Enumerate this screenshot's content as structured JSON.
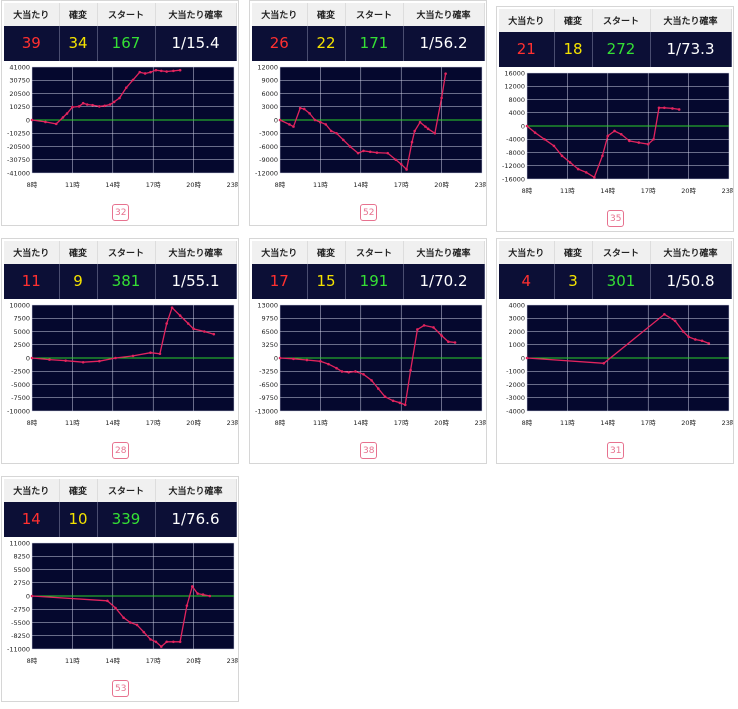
{
  "headers": {
    "hits": "大当たり",
    "kakuhen": "確変",
    "start": "スタート",
    "prob": "大当たり確率"
  },
  "colors": {
    "hits": "#ff3030",
    "kakuhen": "#f4e200",
    "start": "#35e035",
    "line": "#e2245e",
    "zero": "#2bd12b",
    "plot_bg": "#05082e",
    "badge": "#e7728f"
  },
  "cards": [
    {
      "hits": "39",
      "kakuhen": "34",
      "start": "167",
      "prob": "1/15.4",
      "badge": "32"
    },
    {
      "hits": "26",
      "kakuhen": "22",
      "start": "171",
      "prob": "1/56.2",
      "badge": "52"
    },
    {
      "hits": "21",
      "kakuhen": "18",
      "start": "272",
      "prob": "1/73.3",
      "badge": "35"
    },
    {
      "hits": "11",
      "kakuhen": "9",
      "start": "381",
      "prob": "1/55.1",
      "badge": "28"
    },
    {
      "hits": "17",
      "kakuhen": "15",
      "start": "191",
      "prob": "1/70.2",
      "badge": "38"
    },
    {
      "hits": "4",
      "kakuhen": "3",
      "start": "301",
      "prob": "1/50.8",
      "badge": "31"
    },
    {
      "hits": "14",
      "kakuhen": "10",
      "start": "339",
      "prob": "1/76.6",
      "badge": "53"
    }
  ],
  "chart_data": [
    {
      "type": "line",
      "x_ticks": [
        "8時",
        "11時",
        "14時",
        "17時",
        "20時",
        "23時"
      ],
      "xlim": [
        8,
        23
      ],
      "y_ticks": [
        "41000",
        "30750",
        "20500",
        "10250",
        "0",
        "-10250",
        "-20500",
        "-30750",
        "-41000"
      ],
      "ylim": [
        -41000,
        41000
      ],
      "x": [
        8,
        9,
        9.8,
        10.3,
        10.6,
        11,
        11.5,
        11.8,
        12.1,
        12.5,
        13,
        13.4,
        13.8,
        14.1,
        14.5,
        15,
        15.5,
        16,
        16.4,
        16.8,
        17.2,
        17.6,
        18,
        18.5,
        19
      ],
      "y": [
        0,
        -1500,
        -3000,
        2000,
        5000,
        10000,
        10500,
        13000,
        12000,
        11500,
        10500,
        11000,
        12000,
        14000,
        17000,
        25000,
        31000,
        37000,
        36000,
        37000,
        38500,
        38000,
        37500,
        38000,
        38500
      ]
    },
    {
      "type": "line",
      "x_ticks": [
        "8時",
        "11時",
        "14時",
        "17時",
        "20時",
        "23時"
      ],
      "xlim": [
        8,
        23
      ],
      "y_ticks": [
        "12000",
        "9000",
        "6000",
        "3000",
        "0",
        "-3000",
        "-6000",
        "-9000",
        "-12000"
      ],
      "ylim": [
        -12000,
        12000
      ],
      "x": [
        8,
        8.7,
        9,
        9.5,
        9.8,
        10.2,
        10.6,
        11,
        11.4,
        11.8,
        12.2,
        12.7,
        13.2,
        13.8,
        14.2,
        14.7,
        15.2,
        16,
        16.6,
        17,
        17.4,
        17.8,
        18,
        18.4,
        18.8,
        19,
        19.5,
        20,
        20.3
      ],
      "y": [
        0,
        -1000,
        -1500,
        2700,
        2500,
        1500,
        0,
        -500,
        -1000,
        -2500,
        -3000,
        -4500,
        -6000,
        -7500,
        -7000,
        -7200,
        -7400,
        -7500,
        -9000,
        -10000,
        -11200,
        -5000,
        -2500,
        -500,
        -1500,
        -2000,
        -3000,
        5000,
        10500
      ]
    },
    {
      "type": "line",
      "x_ticks": [
        "8時",
        "11時",
        "14時",
        "17時",
        "20時",
        "23時"
      ],
      "xlim": [
        8,
        23
      ],
      "y_ticks": [
        "16000",
        "12000",
        "8000",
        "4000",
        "0",
        "-4000",
        "-8000",
        "-12000",
        "-16000"
      ],
      "ylim": [
        -16000,
        16000
      ],
      "x": [
        8,
        8.6,
        9.3,
        10,
        10.6,
        11.2,
        11.8,
        12.4,
        13,
        13.6,
        14,
        14.5,
        15,
        15.6,
        16.3,
        17,
        17.4,
        17.8,
        18.2,
        18.8,
        19.3
      ],
      "y": [
        0,
        -2000,
        -4000,
        -6000,
        -9000,
        -11000,
        -13000,
        -14000,
        -15500,
        -9000,
        -3000,
        -1500,
        -2500,
        -4500,
        -5000,
        -5500,
        -4000,
        5500,
        5500,
        5300,
        5000
      ]
    },
    {
      "type": "line",
      "x_ticks": [
        "8時",
        "11時",
        "14時",
        "17時",
        "20時",
        "23時"
      ],
      "xlim": [
        8,
        23
      ],
      "y_ticks": [
        "10000",
        "7500",
        "5000",
        "2500",
        "0",
        "-2500",
        "-5000",
        "-7500",
        "-10000"
      ],
      "ylim": [
        -10000,
        10000
      ],
      "x": [
        8,
        9.3,
        10.5,
        11.8,
        13,
        14.2,
        15.5,
        16.8,
        17.5,
        18,
        18.4,
        19,
        19.6,
        20,
        20.8,
        21.5
      ],
      "y": [
        0,
        -300,
        -500,
        -800,
        -600,
        0,
        400,
        1000,
        800,
        6500,
        9500,
        8000,
        6500,
        5500,
        5000,
        4500
      ]
    },
    {
      "type": "line",
      "x_ticks": [
        "8時",
        "11時",
        "14時",
        "17時",
        "20時",
        "23時"
      ],
      "xlim": [
        8,
        23
      ],
      "y_ticks": [
        "13000",
        "9750",
        "6500",
        "3250",
        "0",
        "-3250",
        "-6500",
        "-9750",
        "-13000"
      ],
      "ylim": [
        -13000,
        13000
      ],
      "x": [
        8,
        9,
        10,
        11,
        11.6,
        12.2,
        12.6,
        13.1,
        13.6,
        14.2,
        14.8,
        15.3,
        15.8,
        16.4,
        16.9,
        17.3,
        17.7,
        18.2,
        18.7,
        19.4,
        20,
        20.5,
        21
      ],
      "y": [
        0,
        -200,
        -500,
        -800,
        -1500,
        -2500,
        -3300,
        -3500,
        -3300,
        -4000,
        -5500,
        -7500,
        -9500,
        -10500,
        -11000,
        -11500,
        -3000,
        7000,
        8000,
        7500,
        5500,
        4000,
        3800
      ]
    },
    {
      "type": "line",
      "x_ticks": [
        "8時",
        "11時",
        "14時",
        "17時",
        "20時",
        "23時"
      ],
      "xlim": [
        8,
        23
      ],
      "y_ticks": [
        "4000",
        "3000",
        "2000",
        "1000",
        "0",
        "-1000",
        "-2000",
        "-3000",
        "-4000"
      ],
      "ylim": [
        -4000,
        4000
      ],
      "x": [
        8,
        13.7,
        18.2,
        19,
        19.6,
        20,
        20.5,
        21,
        21.5
      ],
      "y": [
        0,
        -400,
        3300,
        2800,
        2000,
        1600,
        1400,
        1300,
        1100
      ]
    },
    {
      "type": "line",
      "x_ticks": [
        "8時",
        "11時",
        "14時",
        "17時",
        "20時",
        "23時"
      ],
      "xlim": [
        8,
        23
      ],
      "y_ticks": [
        "11000",
        "8250",
        "5500",
        "2750",
        "0",
        "-2750",
        "-5500",
        "-8250",
        "-11000"
      ],
      "ylim": [
        -11000,
        11000
      ],
      "x": [
        8,
        13.6,
        14.2,
        14.8,
        15.3,
        15.8,
        16.3,
        16.8,
        17.2,
        17.6,
        18,
        18.5,
        19,
        19.5,
        19.9,
        20.3,
        20.7,
        21.2
      ],
      "y": [
        0,
        -1000,
        -2500,
        -4500,
        -5500,
        -6000,
        -7500,
        -9000,
        -9500,
        -10500,
        -9500,
        -9500,
        -9500,
        -2000,
        2000,
        500,
        300,
        0
      ]
    }
  ]
}
